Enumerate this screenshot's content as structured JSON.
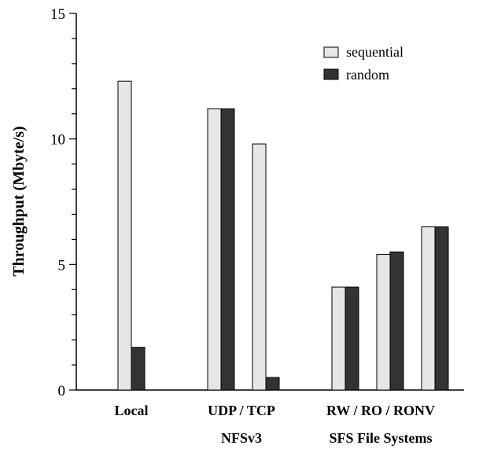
{
  "chart_data": {
    "type": "bar",
    "ylabel": "Throughput (Mbyte/s)",
    "ylim": [
      0,
      15
    ],
    "yticks": [
      "0",
      "5",
      "10",
      "15"
    ],
    "grid": false,
    "legend_position": "top-right",
    "series": [
      {
        "name": "sequential",
        "color": "#e6e6e6",
        "values": [
          12.3,
          11.2,
          9.8,
          4.1,
          5.4,
          6.5
        ]
      },
      {
        "name": "random",
        "color": "#333333",
        "values": [
          1.7,
          11.2,
          0.5,
          4.1,
          5.5,
          6.5
        ]
      }
    ],
    "bars_per_category": [
      "Local",
      "UDP",
      "TCP",
      "RW",
      "RO",
      "RONV"
    ],
    "category_labels": [
      "Local",
      "UDP / TCP",
      "RW / RO / RONV"
    ],
    "group_labels": [
      "NFSv3",
      "SFS File Systems"
    ]
  }
}
